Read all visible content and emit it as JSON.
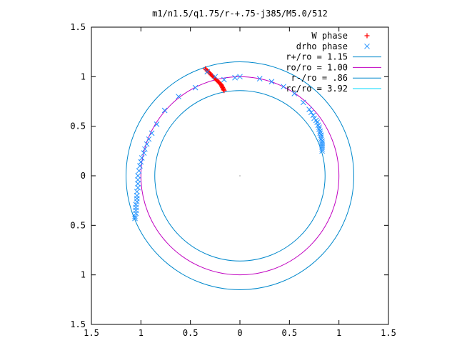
{
  "chart_data": {
    "type": "scatter",
    "title": "m1/n1.5/q1.75/r-+.75-j385/M5.0/512",
    "xlabel": "",
    "ylabel": "",
    "xlim": [
      -1.5,
      1.5
    ],
    "ylim": [
      -1.5,
      1.5
    ],
    "x_ticks": [
      -1.5,
      -1,
      -0.5,
      0,
      0.5,
      1,
      1.5
    ],
    "y_ticks": [
      -1.5,
      -1,
      -0.5,
      0,
      0.5,
      1,
      1.5
    ],
    "x_tick_labels": [
      "1.5",
      "1",
      "0.5",
      "0",
      "0.5",
      "1",
      "1.5"
    ],
    "y_tick_labels": [
      "1.5",
      "1",
      "0.5",
      "0",
      "0.5",
      "1",
      "1.5"
    ],
    "grid": false,
    "legend_position": "top-right",
    "legend": [
      {
        "label": "W phase",
        "kind": "plus",
        "color": "#ff0000"
      },
      {
        "label": "drho phase",
        "kind": "cross",
        "color": "#1e90ff"
      },
      {
        "label": "r+/ro = 1.15",
        "kind": "circle",
        "color": "#0088cc"
      },
      {
        "label": "ro/ro = 1.00",
        "kind": "circle",
        "color": "#c000c0"
      },
      {
        "label": "r-/ro =  .86",
        "kind": "circle",
        "color": "#0088cc"
      },
      {
        "label": "rc/ro = 3.92",
        "kind": "circle",
        "color": "#00d8ff"
      }
    ],
    "circles": [
      {
        "name": "r+/ro",
        "r": 1.15,
        "color": "#0088cc"
      },
      {
        "name": "ro/ro",
        "r": 1.0,
        "color": "#c000c0"
      },
      {
        "name": "r-/ro",
        "r": 0.86,
        "color": "#0088cc"
      }
    ],
    "series": [
      {
        "name": "W phase",
        "marker": "plus",
        "color": "#ff0000",
        "points": [
          [
            -0.35,
            1.08
          ],
          [
            -0.34,
            1.07
          ],
          [
            -0.33,
            1.06
          ],
          [
            -0.32,
            1.05
          ],
          [
            -0.31,
            1.04
          ],
          [
            -0.3,
            1.03
          ],
          [
            -0.29,
            1.02
          ],
          [
            -0.28,
            1.01
          ],
          [
            -0.27,
            1.0
          ],
          [
            -0.26,
            0.99
          ],
          [
            -0.25,
            0.98
          ],
          [
            -0.24,
            0.97
          ],
          [
            -0.23,
            0.96
          ],
          [
            -0.22,
            0.95
          ],
          [
            -0.21,
            0.94
          ],
          [
            -0.2,
            0.93
          ],
          [
            -0.19,
            0.92
          ],
          [
            -0.185,
            0.91
          ],
          [
            -0.18,
            0.9
          ],
          [
            -0.175,
            0.89
          ],
          [
            -0.17,
            0.88
          ],
          [
            -0.165,
            0.87
          ],
          [
            -0.16,
            0.86
          ]
        ]
      },
      {
        "name": "drho phase",
        "marker": "cross",
        "color": "#1e90ff",
        "points": [
          [
            -0.33,
            1.05
          ],
          [
            -0.25,
            1.0
          ],
          [
            -0.16,
            0.97
          ],
          [
            -0.05,
            0.99
          ],
          [
            0.0,
            1.0
          ],
          [
            0.2,
            0.98
          ],
          [
            0.32,
            0.95
          ],
          [
            0.44,
            0.9
          ],
          [
            0.55,
            0.83
          ],
          [
            0.64,
            0.74
          ],
          [
            0.7,
            0.67
          ],
          [
            0.72,
            0.64
          ],
          [
            0.74,
            0.61
          ],
          [
            0.75,
            0.58
          ],
          [
            0.77,
            0.56
          ],
          [
            0.78,
            0.54
          ],
          [
            0.79,
            0.51
          ],
          [
            0.8,
            0.49
          ],
          [
            0.8,
            0.47
          ],
          [
            0.81,
            0.45
          ],
          [
            0.81,
            0.43
          ],
          [
            0.82,
            0.41
          ],
          [
            0.82,
            0.39
          ],
          [
            0.82,
            0.37
          ],
          [
            0.83,
            0.35
          ],
          [
            0.83,
            0.33
          ],
          [
            0.83,
            0.31
          ],
          [
            0.83,
            0.29
          ],
          [
            0.83,
            0.27
          ],
          [
            0.83,
            0.25
          ],
          [
            -0.45,
            0.89
          ],
          [
            -0.62,
            0.8
          ],
          [
            -0.76,
            0.66
          ],
          [
            -0.84,
            0.52
          ],
          [
            -0.89,
            0.43
          ],
          [
            -0.92,
            0.37
          ],
          [
            -0.94,
            0.32
          ],
          [
            -0.96,
            0.27
          ],
          [
            -0.97,
            0.23
          ],
          [
            -0.99,
            0.18
          ],
          [
            -1.0,
            0.14
          ],
          [
            -1.01,
            0.1
          ],
          [
            -1.02,
            0.05
          ],
          [
            -1.03,
            0.0
          ],
          [
            -1.03,
            -0.04
          ],
          [
            -1.03,
            -0.08
          ],
          [
            -1.03,
            -0.12
          ],
          [
            -1.04,
            -0.16
          ],
          [
            -1.04,
            -0.2
          ],
          [
            -1.04,
            -0.23
          ],
          [
            -1.04,
            -0.26
          ],
          [
            -1.05,
            -0.29
          ],
          [
            -1.05,
            -0.32
          ],
          [
            -1.05,
            -0.35
          ],
          [
            -1.05,
            -0.38
          ],
          [
            -1.06,
            -0.41
          ],
          [
            -1.06,
            -0.43
          ]
        ]
      }
    ]
  }
}
